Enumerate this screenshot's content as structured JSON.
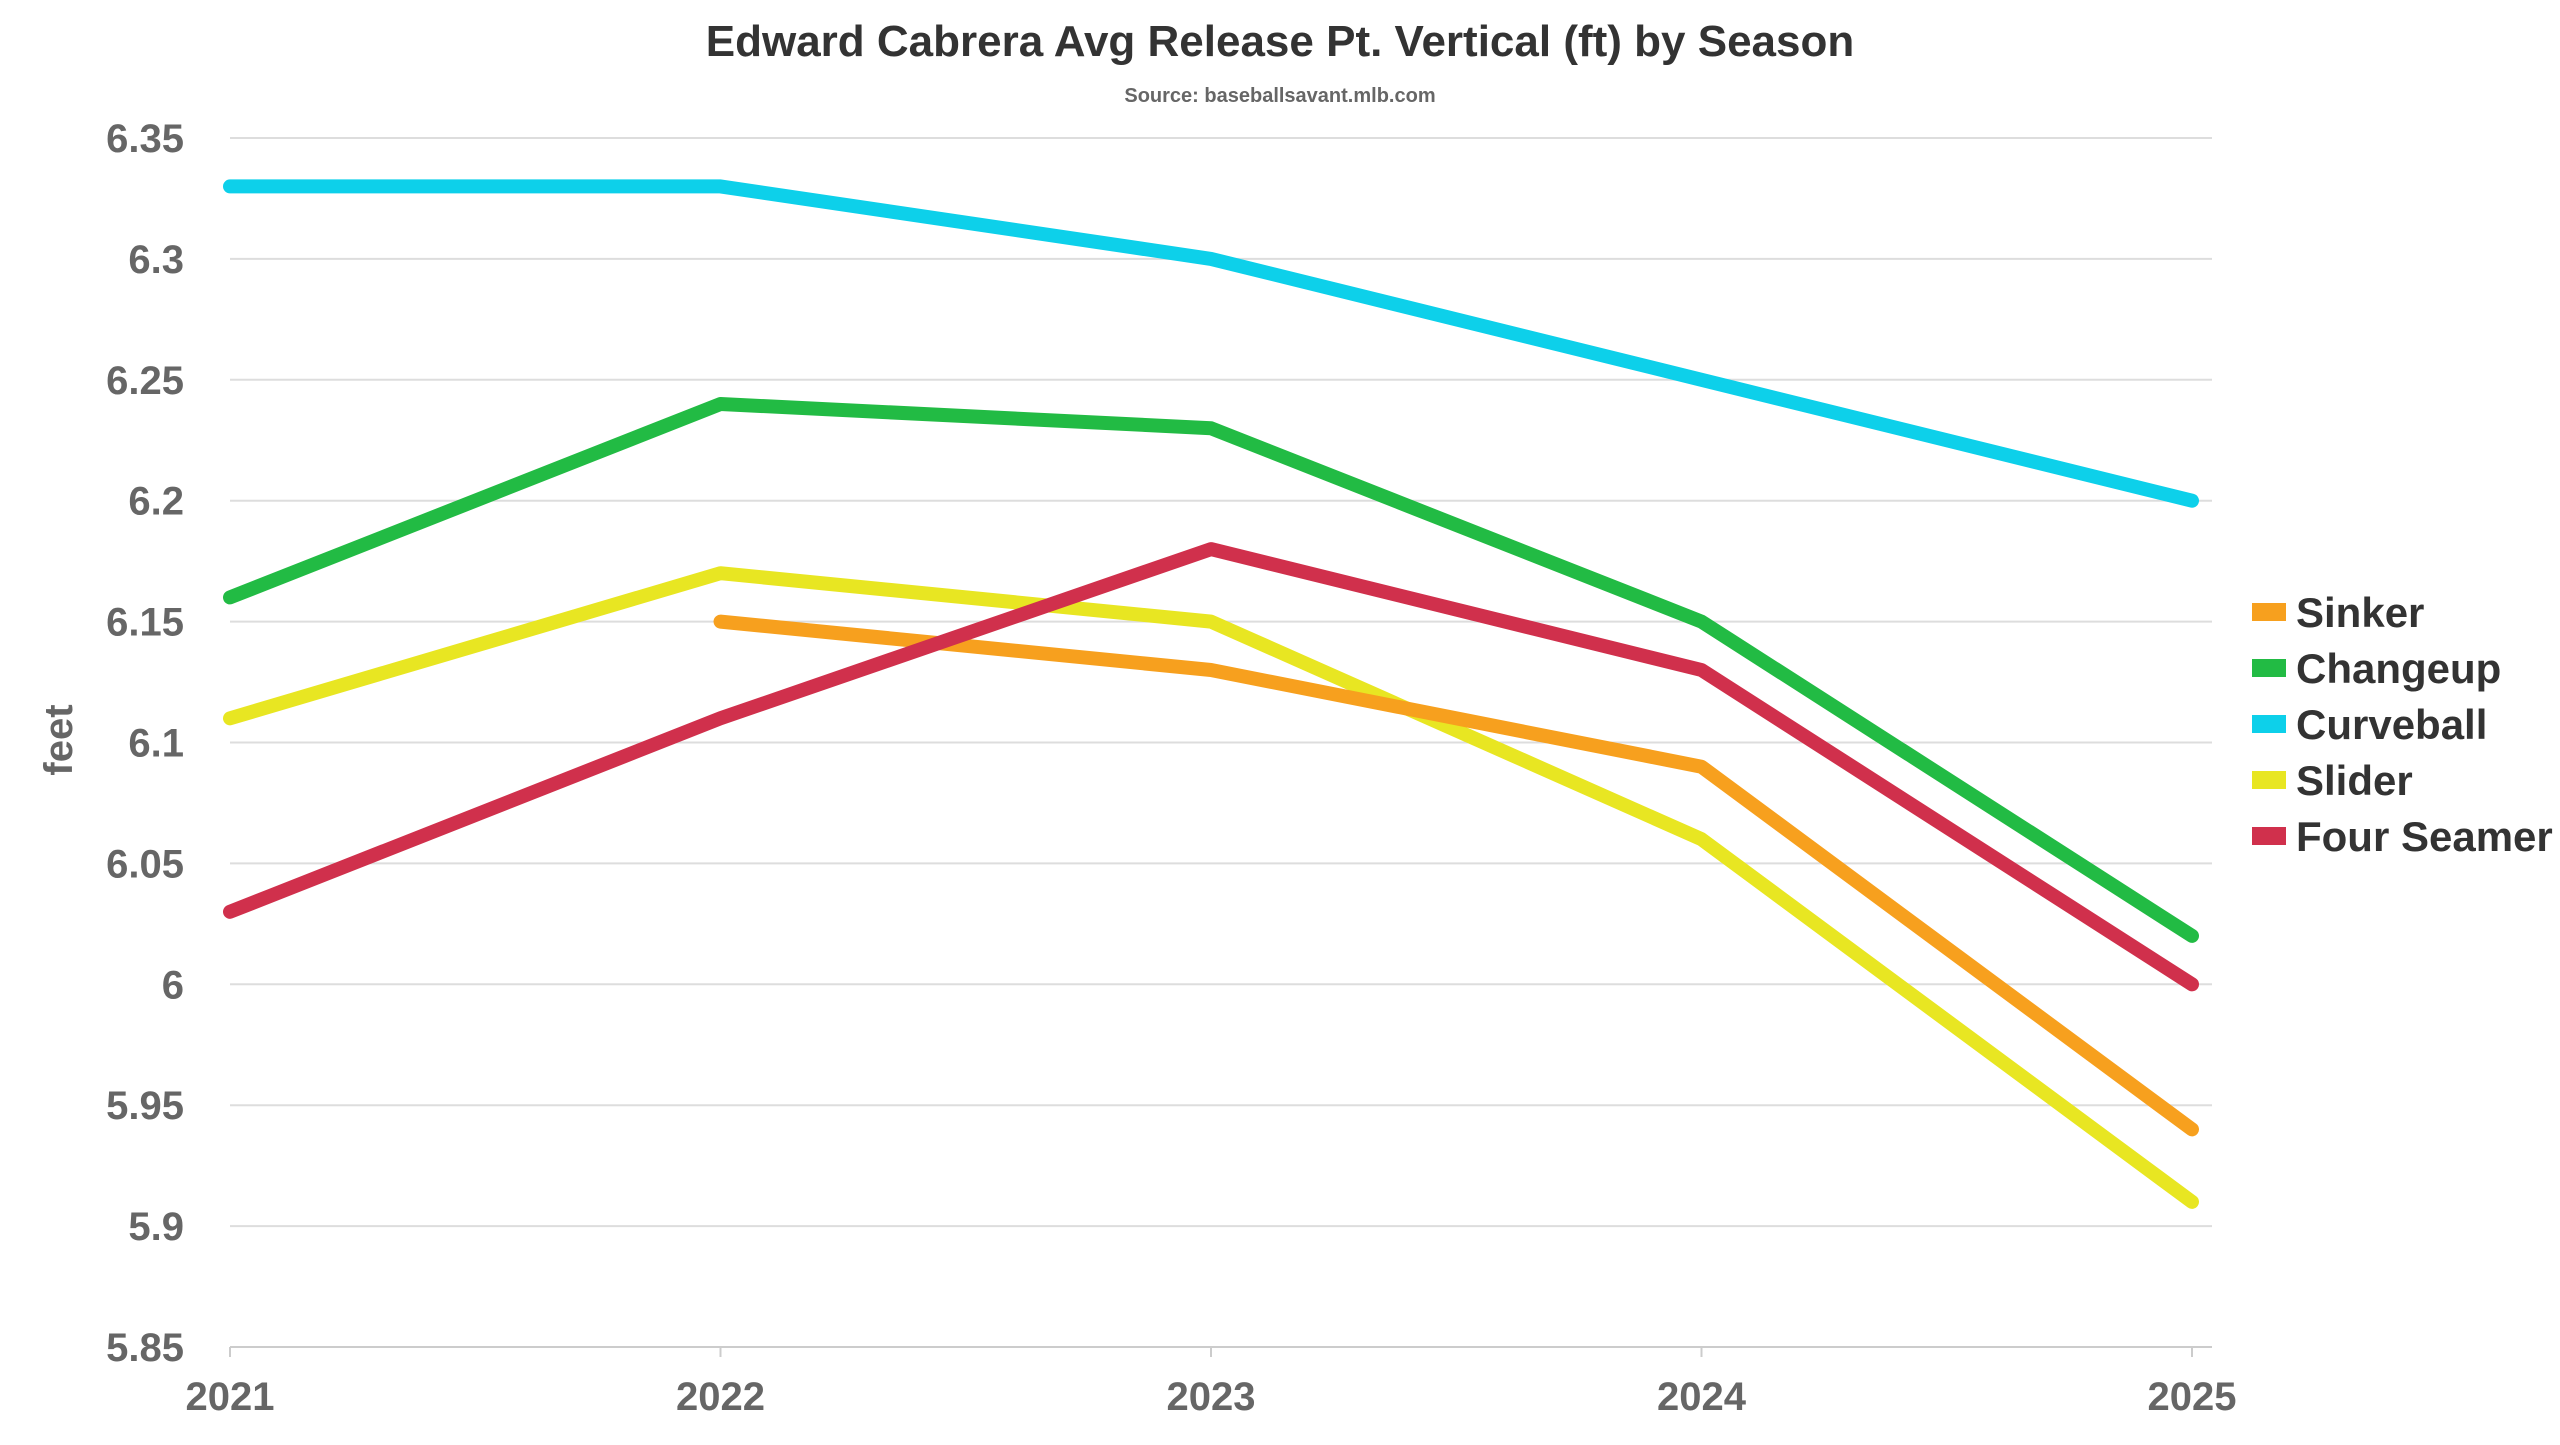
{
  "chart_data": {
    "type": "line",
    "title": "Edward Cabrera Avg Release Pt. Vertical (ft) by Season",
    "subtitle": "Source: baseballsavant.mlb.com",
    "xlabel": "",
    "ylabel": "feet",
    "categories": [
      "2021",
      "2022",
      "2023",
      "2024",
      "2025"
    ],
    "ylim": [
      5.85,
      6.35
    ],
    "yticks": [
      "6.35",
      "6.3",
      "6.25",
      "6.2",
      "6.15",
      "6.1",
      "6.05",
      "6",
      "5.95",
      "5.9",
      "5.85"
    ],
    "grid": true,
    "legend_position": "right",
    "series": [
      {
        "name": "Sinker",
        "color": "#f7a01e",
        "values": [
          null,
          6.15,
          6.13,
          6.09,
          5.94
        ]
      },
      {
        "name": "Changeup",
        "color": "#22bb44",
        "values": [
          6.16,
          6.24,
          6.23,
          6.15,
          6.02
        ]
      },
      {
        "name": "Curveball",
        "color": "#0dd0ea",
        "values": [
          6.33,
          6.33,
          6.3,
          6.25,
          6.2
        ]
      },
      {
        "name": "Slider",
        "color": "#e8e622",
        "values": [
          6.11,
          6.17,
          6.15,
          6.06,
          5.91
        ]
      },
      {
        "name": "Four Seamer",
        "color": "#d0304c",
        "values": [
          6.03,
          6.11,
          6.18,
          6.13,
          6.0
        ]
      }
    ]
  }
}
